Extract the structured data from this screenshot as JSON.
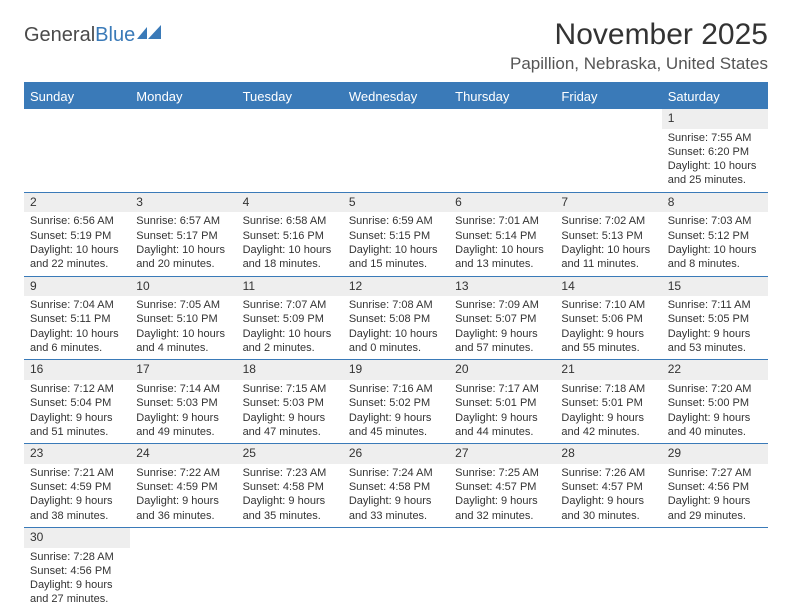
{
  "logo": {
    "text1": "General",
    "text2": "Blue"
  },
  "title": "November 2025",
  "location": "Papillion, Nebraska, United States",
  "colors": {
    "header_bg": "#3a7ab8",
    "header_text": "#ffffff",
    "daynum_bg": "#eeeeee",
    "border": "#3a7ab8",
    "text": "#333333",
    "logo_gray": "#4a4a4a",
    "logo_blue": "#3a7ab8"
  },
  "day_labels": [
    "Sunday",
    "Monday",
    "Tuesday",
    "Wednesday",
    "Thursday",
    "Friday",
    "Saturday"
  ],
  "weeks": [
    [
      null,
      null,
      null,
      null,
      null,
      null,
      {
        "n": "1",
        "sr": "Sunrise: 7:55 AM",
        "ss": "Sunset: 6:20 PM",
        "d1": "Daylight: 10 hours",
        "d2": "and 25 minutes."
      }
    ],
    [
      {
        "n": "2",
        "sr": "Sunrise: 6:56 AM",
        "ss": "Sunset: 5:19 PM",
        "d1": "Daylight: 10 hours",
        "d2": "and 22 minutes."
      },
      {
        "n": "3",
        "sr": "Sunrise: 6:57 AM",
        "ss": "Sunset: 5:17 PM",
        "d1": "Daylight: 10 hours",
        "d2": "and 20 minutes."
      },
      {
        "n": "4",
        "sr": "Sunrise: 6:58 AM",
        "ss": "Sunset: 5:16 PM",
        "d1": "Daylight: 10 hours",
        "d2": "and 18 minutes."
      },
      {
        "n": "5",
        "sr": "Sunrise: 6:59 AM",
        "ss": "Sunset: 5:15 PM",
        "d1": "Daylight: 10 hours",
        "d2": "and 15 minutes."
      },
      {
        "n": "6",
        "sr": "Sunrise: 7:01 AM",
        "ss": "Sunset: 5:14 PM",
        "d1": "Daylight: 10 hours",
        "d2": "and 13 minutes."
      },
      {
        "n": "7",
        "sr": "Sunrise: 7:02 AM",
        "ss": "Sunset: 5:13 PM",
        "d1": "Daylight: 10 hours",
        "d2": "and 11 minutes."
      },
      {
        "n": "8",
        "sr": "Sunrise: 7:03 AM",
        "ss": "Sunset: 5:12 PM",
        "d1": "Daylight: 10 hours",
        "d2": "and 8 minutes."
      }
    ],
    [
      {
        "n": "9",
        "sr": "Sunrise: 7:04 AM",
        "ss": "Sunset: 5:11 PM",
        "d1": "Daylight: 10 hours",
        "d2": "and 6 minutes."
      },
      {
        "n": "10",
        "sr": "Sunrise: 7:05 AM",
        "ss": "Sunset: 5:10 PM",
        "d1": "Daylight: 10 hours",
        "d2": "and 4 minutes."
      },
      {
        "n": "11",
        "sr": "Sunrise: 7:07 AM",
        "ss": "Sunset: 5:09 PM",
        "d1": "Daylight: 10 hours",
        "d2": "and 2 minutes."
      },
      {
        "n": "12",
        "sr": "Sunrise: 7:08 AM",
        "ss": "Sunset: 5:08 PM",
        "d1": "Daylight: 10 hours",
        "d2": "and 0 minutes."
      },
      {
        "n": "13",
        "sr": "Sunrise: 7:09 AM",
        "ss": "Sunset: 5:07 PM",
        "d1": "Daylight: 9 hours",
        "d2": "and 57 minutes."
      },
      {
        "n": "14",
        "sr": "Sunrise: 7:10 AM",
        "ss": "Sunset: 5:06 PM",
        "d1": "Daylight: 9 hours",
        "d2": "and 55 minutes."
      },
      {
        "n": "15",
        "sr": "Sunrise: 7:11 AM",
        "ss": "Sunset: 5:05 PM",
        "d1": "Daylight: 9 hours",
        "d2": "and 53 minutes."
      }
    ],
    [
      {
        "n": "16",
        "sr": "Sunrise: 7:12 AM",
        "ss": "Sunset: 5:04 PM",
        "d1": "Daylight: 9 hours",
        "d2": "and 51 minutes."
      },
      {
        "n": "17",
        "sr": "Sunrise: 7:14 AM",
        "ss": "Sunset: 5:03 PM",
        "d1": "Daylight: 9 hours",
        "d2": "and 49 minutes."
      },
      {
        "n": "18",
        "sr": "Sunrise: 7:15 AM",
        "ss": "Sunset: 5:03 PM",
        "d1": "Daylight: 9 hours",
        "d2": "and 47 minutes."
      },
      {
        "n": "19",
        "sr": "Sunrise: 7:16 AM",
        "ss": "Sunset: 5:02 PM",
        "d1": "Daylight: 9 hours",
        "d2": "and 45 minutes."
      },
      {
        "n": "20",
        "sr": "Sunrise: 7:17 AM",
        "ss": "Sunset: 5:01 PM",
        "d1": "Daylight: 9 hours",
        "d2": "and 44 minutes."
      },
      {
        "n": "21",
        "sr": "Sunrise: 7:18 AM",
        "ss": "Sunset: 5:01 PM",
        "d1": "Daylight: 9 hours",
        "d2": "and 42 minutes."
      },
      {
        "n": "22",
        "sr": "Sunrise: 7:20 AM",
        "ss": "Sunset: 5:00 PM",
        "d1": "Daylight: 9 hours",
        "d2": "and 40 minutes."
      }
    ],
    [
      {
        "n": "23",
        "sr": "Sunrise: 7:21 AM",
        "ss": "Sunset: 4:59 PM",
        "d1": "Daylight: 9 hours",
        "d2": "and 38 minutes."
      },
      {
        "n": "24",
        "sr": "Sunrise: 7:22 AM",
        "ss": "Sunset: 4:59 PM",
        "d1": "Daylight: 9 hours",
        "d2": "and 36 minutes."
      },
      {
        "n": "25",
        "sr": "Sunrise: 7:23 AM",
        "ss": "Sunset: 4:58 PM",
        "d1": "Daylight: 9 hours",
        "d2": "and 35 minutes."
      },
      {
        "n": "26",
        "sr": "Sunrise: 7:24 AM",
        "ss": "Sunset: 4:58 PM",
        "d1": "Daylight: 9 hours",
        "d2": "and 33 minutes."
      },
      {
        "n": "27",
        "sr": "Sunrise: 7:25 AM",
        "ss": "Sunset: 4:57 PM",
        "d1": "Daylight: 9 hours",
        "d2": "and 32 minutes."
      },
      {
        "n": "28",
        "sr": "Sunrise: 7:26 AM",
        "ss": "Sunset: 4:57 PM",
        "d1": "Daylight: 9 hours",
        "d2": "and 30 minutes."
      },
      {
        "n": "29",
        "sr": "Sunrise: 7:27 AM",
        "ss": "Sunset: 4:56 PM",
        "d1": "Daylight: 9 hours",
        "d2": "and 29 minutes."
      }
    ],
    [
      {
        "n": "30",
        "sr": "Sunrise: 7:28 AM",
        "ss": "Sunset: 4:56 PM",
        "d1": "Daylight: 9 hours",
        "d2": "and 27 minutes."
      },
      null,
      null,
      null,
      null,
      null,
      null
    ]
  ]
}
